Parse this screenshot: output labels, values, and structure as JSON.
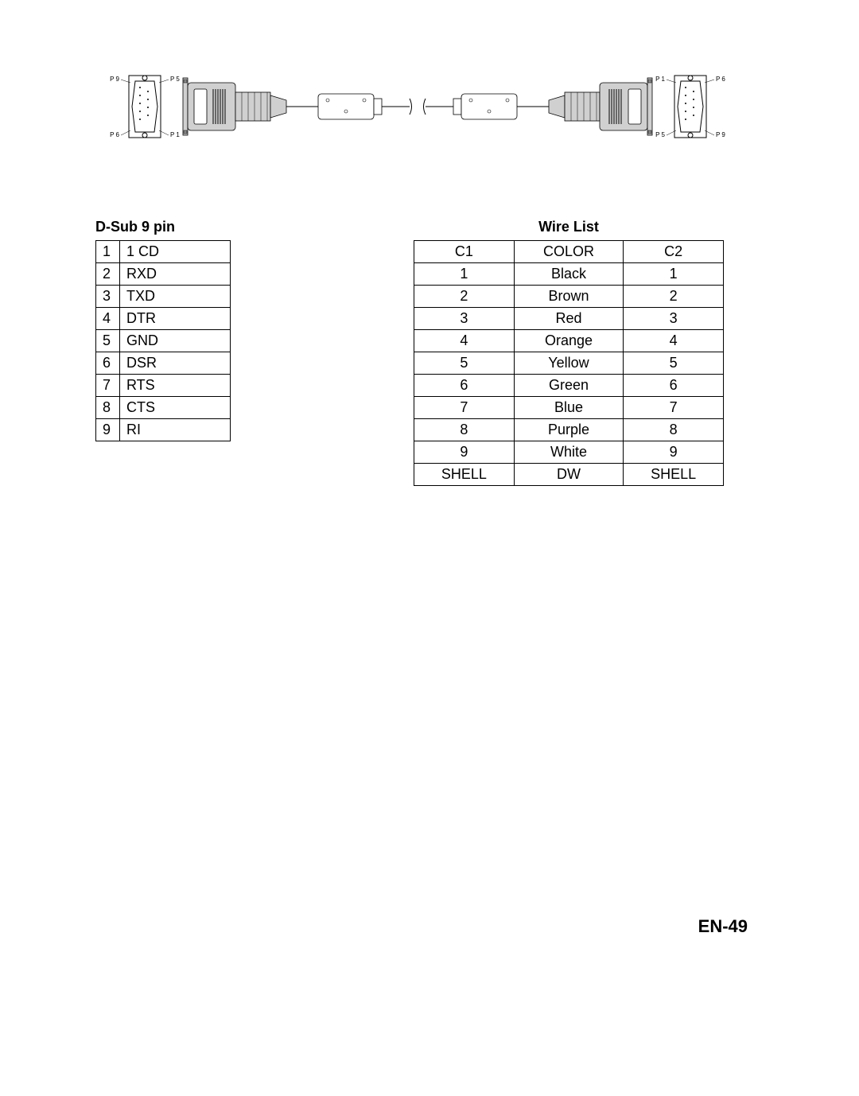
{
  "diagram": {
    "pin_labels_left": {
      "top_left": "P 9",
      "top_right": "P 5",
      "bot_left": "P 6",
      "bot_right": "P 1"
    },
    "pin_labels_right": {
      "top_left": "P 1",
      "top_right": "P 6",
      "bot_left": "P 5",
      "bot_right": "P 9"
    },
    "colors": {
      "outline": "#000000",
      "connector_fill": "#d0d0d0",
      "connector_inner": "#8a8a8a",
      "cable": "#bfbfbf",
      "background": "#ffffff"
    },
    "label_fontsize": 8
  },
  "pin_table": {
    "title": "D-Sub 9 pin",
    "title_fontsize": 18,
    "cell_fontsize": 18,
    "border_color": "#000000",
    "rows": [
      {
        "n": "1",
        "sig": "1 CD"
      },
      {
        "n": "2",
        "sig": "RXD"
      },
      {
        "n": "3",
        "sig": "TXD"
      },
      {
        "n": "4",
        "sig": "DTR"
      },
      {
        "n": "5",
        "sig": "GND"
      },
      {
        "n": "6",
        "sig": "DSR"
      },
      {
        "n": "7",
        "sig": "RTS"
      },
      {
        "n": "8",
        "sig": "CTS"
      },
      {
        "n": "9",
        "sig": "RI"
      }
    ]
  },
  "wire_table": {
    "title": "Wire List",
    "title_fontsize": 18,
    "cell_fontsize": 18,
    "border_color": "#000000",
    "headers": {
      "c1": "C1",
      "color": "COLOR",
      "c2": "C2"
    },
    "rows": [
      {
        "c1": "1",
        "color": "Black",
        "c2": "1"
      },
      {
        "c1": "2",
        "color": "Brown",
        "c2": "2"
      },
      {
        "c1": "3",
        "color": "Red",
        "c2": "3"
      },
      {
        "c1": "4",
        "color": "Orange",
        "c2": "4"
      },
      {
        "c1": "5",
        "color": "Yellow",
        "c2": "5"
      },
      {
        "c1": "6",
        "color": "Green",
        "c2": "6"
      },
      {
        "c1": "7",
        "color": "Blue",
        "c2": "7"
      },
      {
        "c1": "8",
        "color": "Purple",
        "c2": "8"
      },
      {
        "c1": "9",
        "color": "White",
        "c2": "9"
      },
      {
        "c1": "SHELL",
        "color": "DW",
        "c2": "SHELL"
      }
    ]
  },
  "page_number": "EN-49"
}
